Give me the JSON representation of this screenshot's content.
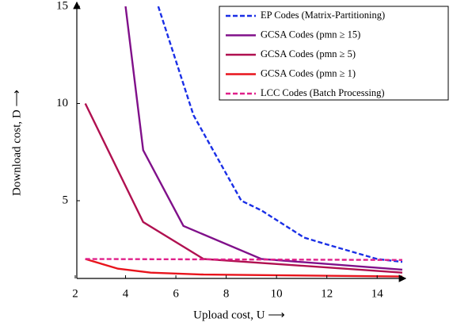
{
  "chart_data": {
    "type": "line",
    "xlabel": "Upload cost, U ⟶",
    "ylabel": "Download cost, D ⟶",
    "xlim": [
      2,
      15
    ],
    "ylim": [
      1,
      15
    ],
    "xticks": [
      2,
      4,
      6,
      8,
      10,
      12,
      14
    ],
    "yticks": [
      5,
      10,
      15
    ],
    "legend": "upper right",
    "series": [
      {
        "name": "EP Codes (Matrix-Partitioning)",
        "color": "#1a2fe6",
        "dashed": true,
        "x": [
          5.3,
          6.7,
          8.6,
          9.4,
          11.1,
          12,
          14,
          15
        ],
        "values": [
          15,
          9.4,
          5.0,
          4.5,
          3.1,
          2.75,
          2.0,
          1.85
        ]
      },
      {
        "name": "GCSA Codes (pmn ≥ 15)",
        "color": "#80108a",
        "dashed": false,
        "x": [
          4,
          4.7,
          6.3,
          9.4,
          15
        ],
        "values": [
          15,
          7.6,
          3.7,
          2.0,
          1.45
        ]
      },
      {
        "name": "GCSA Codes (pmn ≥ 5)",
        "color": "#b01050",
        "dashed": false,
        "x": [
          2.4,
          4.7,
          7.1,
          15
        ],
        "values": [
          10,
          3.9,
          2.0,
          1.3
        ]
      },
      {
        "name": "GCSA Codes (pmn ≥ 1)",
        "color": "#e8141c",
        "dashed": false,
        "x": [
          2.4,
          3.7,
          5,
          7.1,
          15
        ],
        "values": [
          2.0,
          1.5,
          1.3,
          1.2,
          1.1
        ]
      },
      {
        "name": "LCC Codes (Batch Processing)",
        "color": "#e0208a",
        "dashed": true,
        "x": [
          2.4,
          15
        ],
        "values": [
          2.0,
          1.95
        ]
      }
    ]
  }
}
